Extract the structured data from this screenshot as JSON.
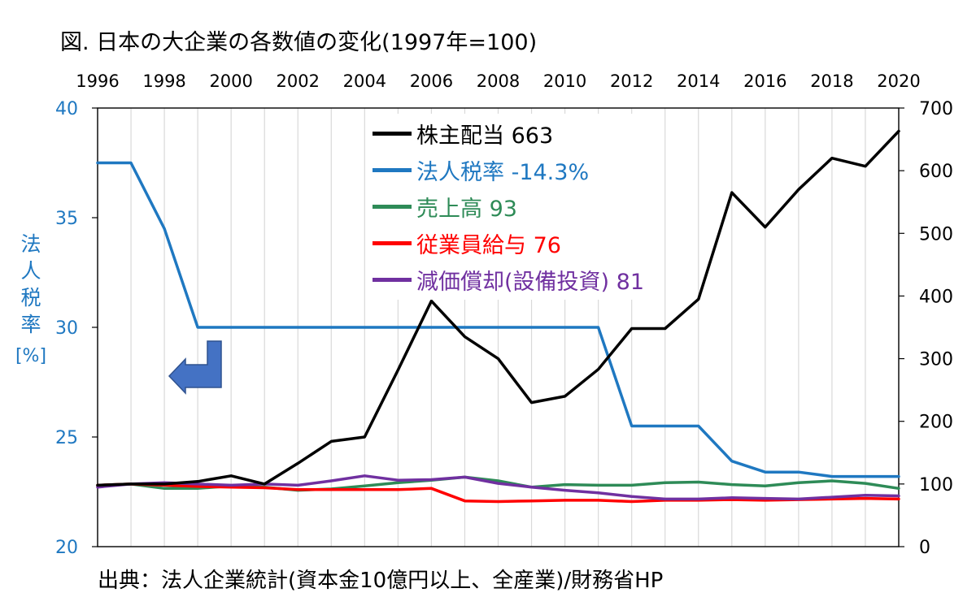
{
  "title": "図. 日本の大企業の各数値の変化(1997年=100)",
  "source": "出典：法人企業統計(資本金10億円以上、全産業)/財務省HP",
  "colors": {
    "dividend": "#000000",
    "tax": "#1f78c1",
    "sales": "#2e8b57",
    "wages": "#ff0000",
    "depreciation": "#7030a0",
    "arrow": "#4472c4",
    "grid": "#d9d9d9"
  },
  "chart_data": {
    "type": "line",
    "x": [
      1996,
      1997,
      1998,
      1999,
      2000,
      2001,
      2002,
      2003,
      2004,
      2005,
      2006,
      2007,
      2008,
      2009,
      2010,
      2011,
      2012,
      2013,
      2014,
      2015,
      2016,
      2017,
      2018,
      2019,
      2020
    ],
    "x_ticks": [
      "1996",
      "1998",
      "2000",
      "2002",
      "2004",
      "2006",
      "2008",
      "2010",
      "2012",
      "2014",
      "2016",
      "2018",
      "2020"
    ],
    "y_left": {
      "label_chars": [
        "法",
        "人",
        "税",
        "率"
      ],
      "unit": "[%]",
      "range": [
        20,
        40
      ],
      "ticks": [
        "20",
        "25",
        "30",
        "35",
        "40"
      ]
    },
    "y_right": {
      "range": [
        0,
        700
      ],
      "ticks": [
        "0",
        "100",
        "200",
        "300",
        "400",
        "500",
        "600",
        "700"
      ]
    },
    "grid": "vertical",
    "legend_position": "top-center",
    "series": [
      {
        "key": "dividend",
        "name": "株主配当 663",
        "axis": "right",
        "values": [
          98,
          100,
          100,
          104,
          113,
          100,
          133,
          168,
          175,
          282,
          392,
          335,
          300,
          230,
          240,
          283,
          348,
          348,
          395,
          565,
          510,
          570,
          620,
          607,
          663
        ]
      },
      {
        "key": "tax",
        "name": "法人税率 -14.3%",
        "axis": "left",
        "values": [
          37.5,
          37.5,
          34.5,
          30,
          30,
          30,
          30,
          30,
          30,
          30,
          30,
          30,
          30,
          30,
          30,
          30,
          25.5,
          25.5,
          25.5,
          23.9,
          23.4,
          23.4,
          23.2,
          23.2,
          23.2
        ]
      },
      {
        "key": "sales",
        "name": "売上高 93",
        "axis": "right",
        "values": [
          98,
          100,
          93,
          93,
          97,
          95,
          90,
          92,
          97,
          102,
          106,
          111,
          105,
          95,
          99,
          98,
          98,
          102,
          103,
          99,
          97,
          102,
          105,
          101,
          93
        ]
      },
      {
        "key": "wages",
        "name": "従業員給与 76",
        "axis": "right",
        "values": [
          98,
          100,
          98,
          96,
          95,
          94,
          91,
          91,
          91,
          91,
          93,
          73,
          72,
          73,
          74,
          74,
          72,
          74,
          74,
          75,
          74,
          75,
          76,
          77,
          76
        ]
      },
      {
        "key": "depreciation",
        "name": "減価償却(設備投資) 81",
        "axis": "right",
        "values": [
          95,
          100,
          102,
          100,
          98,
          100,
          98,
          105,
          113,
          106,
          107,
          111,
          101,
          95,
          90,
          86,
          80,
          76,
          76,
          78,
          77,
          76,
          79,
          82,
          81
        ]
      }
    ]
  }
}
